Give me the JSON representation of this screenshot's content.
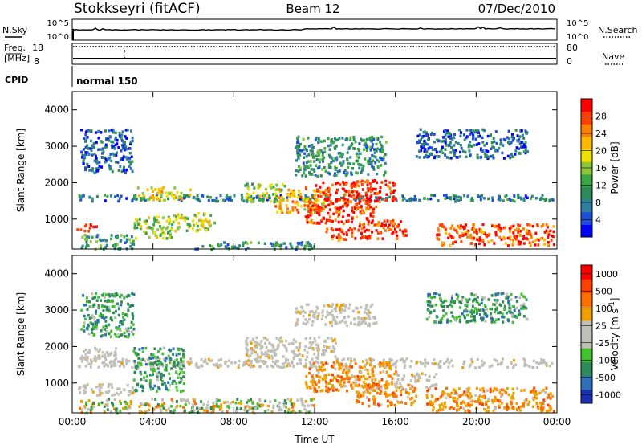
{
  "header": {
    "station": "Stokkseyri (fitACF)",
    "beam": "Beam 12",
    "date": "07/Dec/2010"
  },
  "noise_panel": {
    "left_label": "N.Sky",
    "right_label": "N.Search",
    "left_ticks": [
      "10^5",
      "10^0"
    ],
    "right_ticks": [
      "10^5",
      "10^0"
    ]
  },
  "freq_panel": {
    "label_line1": "Freq.",
    "label_line2": "[MHz]",
    "left_ticks": [
      "18",
      "8"
    ],
    "right_label": "Nave",
    "right_ticks": [
      "80",
      "0"
    ]
  },
  "cpid": {
    "label": "CPID",
    "mode": "normal 150"
  },
  "chart_data": [
    {
      "type": "heatmap",
      "quantity": "Power",
      "ylabel": "Slant Range [km]",
      "xlabel": "",
      "x_range_hours": [
        0,
        24
      ],
      "y_range_km": [
        180,
        4500
      ],
      "y_ticks": [
        "1000",
        "2000",
        "3000",
        "4000"
      ],
      "colorbar": {
        "label": "Power [dB]",
        "ticks": [
          "4",
          "8",
          "12",
          "16",
          "20",
          "24",
          "28"
        ],
        "colors": [
          "#0000ff",
          "#1f4fd6",
          "#2f7fa0",
          "#2e8c5a",
          "#3aa646",
          "#8cc63e",
          "#f0e000",
          "#ffb800",
          "#ff8000",
          "#ff4000",
          "#ff0000"
        ]
      },
      "echo_regions": [
        {
          "t0": 0.2,
          "t1": 23.8,
          "r0": 1520,
          "r1": 1700,
          "level": 0.25
        },
        {
          "t0": 0.4,
          "t1": 3.0,
          "r0": 2300,
          "r1": 3500,
          "level": 0.2
        },
        {
          "t0": 3.2,
          "t1": 5.8,
          "r0": 1550,
          "r1": 1900,
          "level": 0.6
        },
        {
          "t0": 0.2,
          "t1": 1.2,
          "r0": 700,
          "r1": 900,
          "level": 0.95
        },
        {
          "t0": 0.3,
          "t1": 3.0,
          "r0": 200,
          "r1": 600,
          "level": 0.35
        },
        {
          "t0": 3.0,
          "t1": 5.0,
          "r0": 500,
          "r1": 1100,
          "level": 0.5
        },
        {
          "t0": 5.0,
          "t1": 7.0,
          "r0": 700,
          "r1": 1200,
          "level": 0.55
        },
        {
          "t0": 8.5,
          "t1": 10.5,
          "r0": 1500,
          "r1": 2000,
          "level": 0.5
        },
        {
          "t0": 10.0,
          "t1": 12.5,
          "r0": 1200,
          "r1": 1900,
          "level": 0.7
        },
        {
          "t0": 12.0,
          "t1": 16.0,
          "r0": 1500,
          "r1": 2100,
          "level": 0.92
        },
        {
          "t0": 11.5,
          "t1": 15.0,
          "r0": 900,
          "r1": 1500,
          "level": 0.88
        },
        {
          "t0": 14.0,
          "t1": 16.5,
          "r0": 500,
          "r1": 1000,
          "level": 0.9
        },
        {
          "t0": 12.5,
          "t1": 14.0,
          "r0": 450,
          "r1": 800,
          "level": 0.85
        },
        {
          "t0": 18.0,
          "t1": 23.8,
          "r0": 300,
          "r1": 900,
          "level": 0.85
        },
        {
          "t0": 11.0,
          "t1": 15.5,
          "r0": 2200,
          "r1": 3300,
          "level": 0.3
        },
        {
          "t0": 17.0,
          "t1": 22.5,
          "r0": 2700,
          "r1": 3500,
          "level": 0.2
        },
        {
          "t0": 6.0,
          "t1": 12.0,
          "r0": 200,
          "r1": 400,
          "level": 0.3
        }
      ]
    },
    {
      "type": "heatmap",
      "quantity": "Velocity",
      "ylabel": "Slant Range [km]",
      "xlabel": "Time UT",
      "x_range_hours": [
        0,
        24
      ],
      "x_ticks": [
        "00:00",
        "04:00",
        "08:00",
        "12:00",
        "16:00",
        "20:00",
        "00:00"
      ],
      "y_range_km": [
        180,
        4500
      ],
      "y_ticks": [
        "1000",
        "2000",
        "3000",
        "4000"
      ],
      "colorbar": {
        "label": "Velocity [m s",
        "label_exponent": "-1",
        "label_suffix": "]",
        "ticks": [
          "1000",
          "500",
          "100",
          "25",
          "-25",
          "-100",
          "-500",
          "-1000"
        ],
        "colors": [
          "#1a30b0",
          "#2f6fb8",
          "#2e8c5a",
          "#44c030",
          "#c0c0b8",
          "#c0c0b8",
          "#f0a000",
          "#ff7000",
          "#ff4000",
          "#ff0000"
        ]
      },
      "echo_regions": [
        {
          "t0": 0.2,
          "t1": 23.8,
          "r0": 1450,
          "r1": 1700,
          "kind": "ground"
        },
        {
          "t0": 0.3,
          "t1": 2.5,
          "r0": 1700,
          "r1": 2000,
          "kind": "ground"
        },
        {
          "t0": 0.4,
          "t1": 3.0,
          "r0": 2300,
          "r1": 3500,
          "kind": "toward"
        },
        {
          "t0": 3.0,
          "t1": 5.5,
          "r0": 800,
          "r1": 2000,
          "kind": "toward"
        },
        {
          "t0": 0.2,
          "t1": 3.0,
          "r0": 700,
          "r1": 1000,
          "kind": "ground"
        },
        {
          "t0": 8.5,
          "t1": 13.0,
          "r0": 1700,
          "r1": 2300,
          "kind": "ground"
        },
        {
          "t0": 11.0,
          "t1": 15.0,
          "r0": 2600,
          "r1": 3200,
          "kind": "ground"
        },
        {
          "t0": 11.5,
          "t1": 16.0,
          "r0": 800,
          "r1": 1600,
          "kind": "away"
        },
        {
          "t0": 14.0,
          "t1": 17.0,
          "r0": 400,
          "r1": 1000,
          "kind": "away"
        },
        {
          "t0": 17.5,
          "t1": 23.8,
          "r0": 250,
          "r1": 900,
          "kind": "away"
        },
        {
          "t0": 0.3,
          "t1": 12.0,
          "r0": 200,
          "r1": 600,
          "kind": "mixed"
        },
        {
          "t0": 16.0,
          "t1": 18.0,
          "r0": 900,
          "r1": 1300,
          "kind": "ground"
        },
        {
          "t0": 17.5,
          "t1": 22.5,
          "r0": 2700,
          "r1": 3500,
          "kind": "toward"
        }
      ]
    }
  ]
}
